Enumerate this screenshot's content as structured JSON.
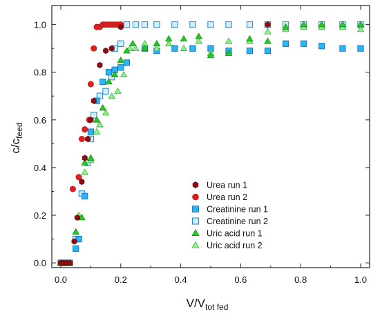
{
  "chart_data": {
    "type": "scatter",
    "xlabel": "V/V",
    "xlabel_sub": "tot fed",
    "ylabel": "c/c",
    "ylabel_sub": "feed",
    "xlim": [
      -0.03,
      1.03
    ],
    "ylim": [
      -0.02,
      1.08
    ],
    "x_ticks": [
      "0.0",
      "0.2",
      "0.4",
      "0.6",
      "0.8",
      "1.0"
    ],
    "y_ticks": [
      "0.0",
      "0.2",
      "0.4",
      "0.6",
      "0.8",
      "1.0"
    ],
    "x_tick_values": [
      0.0,
      0.2,
      0.4,
      0.6,
      0.8,
      1.0
    ],
    "y_tick_values": [
      0.0,
      0.2,
      0.4,
      0.6,
      0.8,
      1.0
    ],
    "grid": false,
    "legend_position": "bottom-center",
    "series": [
      {
        "name": "Urea run 1",
        "marker": "hexagon",
        "color": "#8b0d10",
        "points": [
          [
            0.0,
            0.0
          ],
          [
            0.01,
            0.0
          ],
          [
            0.02,
            0.0
          ],
          [
            0.03,
            0.0
          ],
          [
            0.045,
            0.09
          ],
          [
            0.055,
            0.19
          ],
          [
            0.07,
            0.34
          ],
          [
            0.08,
            0.44
          ],
          [
            0.09,
            0.52
          ],
          [
            0.1,
            0.6
          ],
          [
            0.11,
            0.68
          ],
          [
            0.13,
            0.83
          ],
          [
            0.15,
            0.89
          ],
          [
            0.17,
            0.9
          ],
          [
            0.2,
            0.99
          ],
          [
            0.69,
            1.0
          ]
        ]
      },
      {
        "name": "Urea run 2",
        "marker": "circle",
        "color": "#e02020",
        "points": [
          [
            0.04,
            0.31
          ],
          [
            0.06,
            0.36
          ],
          [
            0.07,
            0.52
          ],
          [
            0.08,
            0.56
          ],
          [
            0.095,
            0.6
          ],
          [
            0.1,
            0.75
          ],
          [
            0.11,
            0.9
          ],
          [
            0.12,
            0.99
          ],
          [
            0.13,
            0.99
          ],
          [
            0.14,
            1.0
          ],
          [
            0.15,
            1.0
          ],
          [
            0.16,
            1.0
          ],
          [
            0.17,
            1.0
          ],
          [
            0.18,
            1.0
          ],
          [
            0.19,
            1.0
          ],
          [
            0.2,
            1.0
          ]
        ]
      },
      {
        "name": "Creatinine run 1",
        "marker": "square",
        "color": "#29b6f6",
        "points": [
          [
            0.0,
            0.0
          ],
          [
            0.01,
            0.0
          ],
          [
            0.02,
            0.0
          ],
          [
            0.03,
            0.0
          ],
          [
            0.05,
            0.06
          ],
          [
            0.06,
            0.1
          ],
          [
            0.08,
            0.28
          ],
          [
            0.1,
            0.55
          ],
          [
            0.12,
            0.68
          ],
          [
            0.14,
            0.76
          ],
          [
            0.16,
            0.8
          ],
          [
            0.18,
            0.81
          ],
          [
            0.2,
            0.82
          ],
          [
            0.22,
            0.84
          ],
          [
            0.28,
            0.9
          ],
          [
            0.32,
            0.89
          ],
          [
            0.38,
            0.9
          ],
          [
            0.44,
            0.9
          ],
          [
            0.5,
            0.9
          ],
          [
            0.56,
            0.89
          ],
          [
            0.63,
            0.89
          ],
          [
            0.69,
            0.89
          ],
          [
            0.75,
            0.92
          ],
          [
            0.81,
            0.92
          ],
          [
            0.87,
            0.91
          ],
          [
            0.94,
            0.9
          ],
          [
            1.0,
            0.9
          ]
        ]
      },
      {
        "name": "Creatinine run 2",
        "marker": "square-open",
        "color": "#29b6f6",
        "points": [
          [
            0.05,
            0.1
          ],
          [
            0.07,
            0.29
          ],
          [
            0.09,
            0.42
          ],
          [
            0.1,
            0.52
          ],
          [
            0.11,
            0.62
          ],
          [
            0.13,
            0.7
          ],
          [
            0.15,
            0.72
          ],
          [
            0.17,
            0.78
          ],
          [
            0.18,
            0.9
          ],
          [
            0.2,
            0.92
          ],
          [
            0.22,
            1.0
          ],
          [
            0.25,
            1.0
          ],
          [
            0.28,
            1.0
          ],
          [
            0.32,
            1.0
          ],
          [
            0.38,
            1.0
          ],
          [
            0.44,
            1.0
          ],
          [
            0.5,
            1.0
          ],
          [
            0.56,
            1.0
          ],
          [
            0.63,
            1.0
          ],
          [
            0.69,
            1.0
          ],
          [
            0.75,
            1.0
          ],
          [
            0.81,
            1.0
          ],
          [
            0.87,
            1.0
          ],
          [
            0.94,
            1.0
          ],
          [
            1.0,
            1.0
          ]
        ]
      },
      {
        "name": "Uric acid run 1",
        "marker": "triangle",
        "color": "#22cc22",
        "points": [
          [
            0.0,
            0.0
          ],
          [
            0.01,
            0.0
          ],
          [
            0.02,
            0.0
          ],
          [
            0.03,
            0.0
          ],
          [
            0.05,
            0.13
          ],
          [
            0.07,
            0.19
          ],
          [
            0.08,
            0.42
          ],
          [
            0.1,
            0.44
          ],
          [
            0.12,
            0.6
          ],
          [
            0.14,
            0.65
          ],
          [
            0.16,
            0.76
          ],
          [
            0.18,
            0.79
          ],
          [
            0.2,
            0.85
          ],
          [
            0.22,
            0.89
          ],
          [
            0.24,
            0.92
          ],
          [
            0.28,
            0.9
          ],
          [
            0.32,
            0.92
          ],
          [
            0.36,
            0.94
          ],
          [
            0.41,
            0.94
          ],
          [
            0.46,
            0.95
          ],
          [
            0.5,
            0.87
          ],
          [
            0.56,
            0.88
          ],
          [
            0.63,
            0.94
          ],
          [
            0.69,
            0.93
          ],
          [
            0.75,
            0.99
          ],
          [
            0.81,
            1.0
          ],
          [
            0.87,
            1.0
          ],
          [
            0.94,
            1.0
          ],
          [
            1.0,
            1.0
          ]
        ]
      },
      {
        "name": "Uric acid run 2",
        "marker": "triangle-light",
        "color": "#90ee90",
        "points": [
          [
            0.06,
            0.2
          ],
          [
            0.08,
            0.38
          ],
          [
            0.1,
            0.43
          ],
          [
            0.12,
            0.55
          ],
          [
            0.13,
            0.58
          ],
          [
            0.15,
            0.63
          ],
          [
            0.17,
            0.7
          ],
          [
            0.19,
            0.72
          ],
          [
            0.21,
            0.79
          ],
          [
            0.23,
            0.9
          ],
          [
            0.25,
            0.9
          ],
          [
            0.28,
            0.92
          ],
          [
            0.32,
            0.9
          ],
          [
            0.36,
            0.92
          ],
          [
            0.41,
            0.9
          ],
          [
            0.46,
            0.93
          ],
          [
            0.5,
            0.88
          ],
          [
            0.56,
            0.93
          ],
          [
            0.63,
            0.93
          ],
          [
            0.69,
            0.97
          ],
          [
            0.75,
            0.98
          ],
          [
            0.81,
            0.99
          ],
          [
            0.87,
            0.99
          ],
          [
            0.94,
            0.99
          ],
          [
            1.0,
            0.98
          ]
        ]
      }
    ]
  }
}
